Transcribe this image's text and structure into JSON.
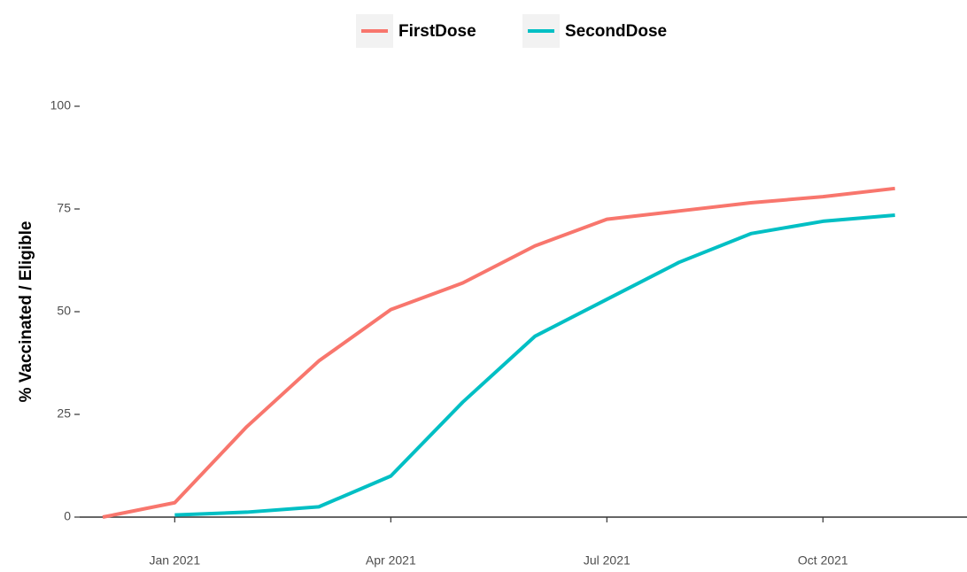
{
  "chart_data": {
    "type": "line",
    "y_label": "% Vaccinated / Eligible",
    "x": [
      "2020-12",
      "2021-01",
      "2021-02",
      "2021-03",
      "2021-04",
      "2021-05",
      "2021-06",
      "2021-07",
      "2021-08",
      "2021-09",
      "2021-10",
      "2021-11"
    ],
    "series": [
      {
        "name": "FirstDose",
        "color": "#f8766d",
        "values": [
          0,
          3.5,
          22,
          38,
          50.5,
          57,
          66,
          72.5,
          74.5,
          76.5,
          78,
          80
        ]
      },
      {
        "name": "SecondDose",
        "color": "#00bfc4",
        "values": [
          null,
          0.5,
          1.2,
          2.5,
          10,
          28,
          44,
          53,
          62,
          69,
          72,
          73.5
        ]
      }
    ],
    "xlim": [
      "2020-12",
      "2021-12"
    ],
    "xticks": [
      {
        "value": "2021-01",
        "label": "Jan 2021"
      },
      {
        "value": "2021-04",
        "label": "Apr 2021"
      },
      {
        "value": "2021-07",
        "label": "Jul 2021"
      },
      {
        "value": "2021-10",
        "label": "Oct 2021"
      }
    ],
    "ylim": [
      0,
      100
    ],
    "yticks": [
      0,
      25,
      50,
      75,
      100
    ],
    "grid": false,
    "legend": "top"
  }
}
